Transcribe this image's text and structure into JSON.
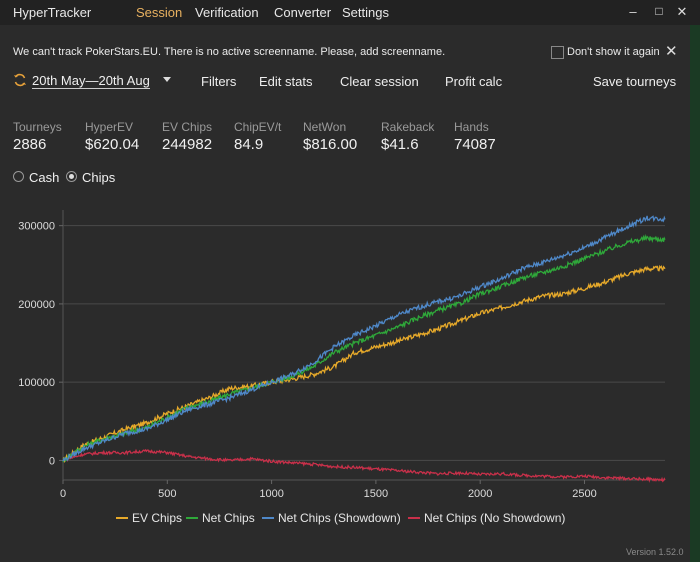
{
  "app": {
    "name": "HyperTracker"
  },
  "menu": [
    "Session",
    "Verification",
    "Converter",
    "Settings"
  ],
  "window_controls": {
    "minimize": "–",
    "maximize": "□",
    "close": "✕"
  },
  "notice": {
    "text": "We can't track PokerStars.EU. There is no active screenname. Please, add screenname.",
    "dont_show_label": "Don't show it again",
    "close": "✕"
  },
  "toolbar": {
    "date_range": "20th May—20th Aug",
    "filters": "Filters",
    "edit_stats": "Edit stats",
    "clear_session": "Clear session",
    "profit_calc": "Profit calc",
    "save_tourneys": "Save tourneys"
  },
  "stats": [
    {
      "label": "Tourneys",
      "value": "2886"
    },
    {
      "label": "HyperEV",
      "value": "$620.04"
    },
    {
      "label": "EV Chips",
      "value": "244982"
    },
    {
      "label": "ChipEV/t",
      "value": "84.9"
    },
    {
      "label": "NetWon",
      "value": "$816.00"
    },
    {
      "label": "Rakeback",
      "value": "$41.6"
    },
    {
      "label": "Hands",
      "value": "74087"
    }
  ],
  "view_mode": {
    "options": [
      "Cash",
      "Chips"
    ],
    "selected": "Chips"
  },
  "chart_data": {
    "type": "line",
    "xlim": [
      0,
      2886
    ],
    "ylim": [
      -25000,
      320000
    ],
    "x_ticks": [
      0,
      500,
      1000,
      1500,
      2000,
      2500
    ],
    "y_ticks": [
      0,
      100000,
      200000,
      300000
    ],
    "grid": "horizontal",
    "legend": "bottom",
    "series": [
      {
        "name": "EV Chips",
        "color": "#e6a92a",
        "x": [
          0,
          100,
          200,
          300,
          400,
          500,
          600,
          700,
          800,
          900,
          1000,
          1100,
          1200,
          1300,
          1400,
          1500,
          1600,
          1700,
          1800,
          1900,
          2000,
          2100,
          2200,
          2300,
          2400,
          2500,
          2600,
          2700,
          2800,
          2886
        ],
        "y": [
          0,
          20000,
          30000,
          40000,
          48000,
          60000,
          70000,
          80000,
          92000,
          95000,
          100000,
          104000,
          110000,
          120000,
          138000,
          145000,
          152000,
          160000,
          168000,
          178000,
          188000,
          195000,
          203000,
          210000,
          213000,
          220000,
          228000,
          238000,
          245000,
          244982
        ]
      },
      {
        "name": "Net Chips",
        "color": "#2fa83a",
        "x": [
          0,
          100,
          200,
          300,
          400,
          500,
          600,
          700,
          800,
          900,
          1000,
          1100,
          1200,
          1300,
          1400,
          1500,
          1600,
          1700,
          1800,
          1900,
          2000,
          2100,
          2200,
          2300,
          2400,
          2500,
          2600,
          2700,
          2800,
          2886
        ],
        "y": [
          0,
          18000,
          28000,
          35000,
          42000,
          55000,
          68000,
          75000,
          85000,
          92000,
          100000,
          108000,
          120000,
          138000,
          150000,
          160000,
          170000,
          182000,
          192000,
          200000,
          213000,
          222000,
          233000,
          240000,
          248000,
          258000,
          268000,
          278000,
          284000,
          282000
        ]
      },
      {
        "name": "Net Chips (Showdown)",
        "color": "#4f88c8",
        "x": [
          0,
          100,
          200,
          300,
          400,
          500,
          600,
          700,
          800,
          900,
          1000,
          1100,
          1200,
          1300,
          1400,
          1500,
          1600,
          1700,
          1800,
          1900,
          2000,
          2100,
          2200,
          2300,
          2400,
          2500,
          2600,
          2700,
          2800,
          2886
        ],
        "y": [
          0,
          15000,
          25000,
          35000,
          40000,
          52000,
          65000,
          72000,
          80000,
          90000,
          100000,
          110000,
          125000,
          145000,
          160000,
          172000,
          185000,
          195000,
          203000,
          210000,
          222000,
          232000,
          245000,
          253000,
          262000,
          272000,
          285000,
          298000,
          310000,
          308000
        ]
      },
      {
        "name": "Net Chips (No Showdown)",
        "color": "#c9304a",
        "x": [
          0,
          100,
          200,
          300,
          400,
          500,
          600,
          700,
          800,
          900,
          1000,
          1100,
          1200,
          1300,
          1400,
          1500,
          1600,
          1700,
          1800,
          1900,
          2000,
          2100,
          2200,
          2300,
          2400,
          2500,
          2600,
          2700,
          2800,
          2886
        ],
        "y": [
          0,
          8000,
          10000,
          10000,
          12000,
          10000,
          5000,
          2000,
          0,
          2000,
          -1000,
          -3000,
          -5000,
          -8000,
          -9000,
          -11000,
          -13000,
          -15000,
          -17000,
          -16000,
          -18000,
          -17000,
          -19000,
          -20000,
          -21000,
          -20000,
          -22000,
          -23000,
          -24000,
          -25000
        ]
      }
    ]
  },
  "version": "Version 1.52.0"
}
